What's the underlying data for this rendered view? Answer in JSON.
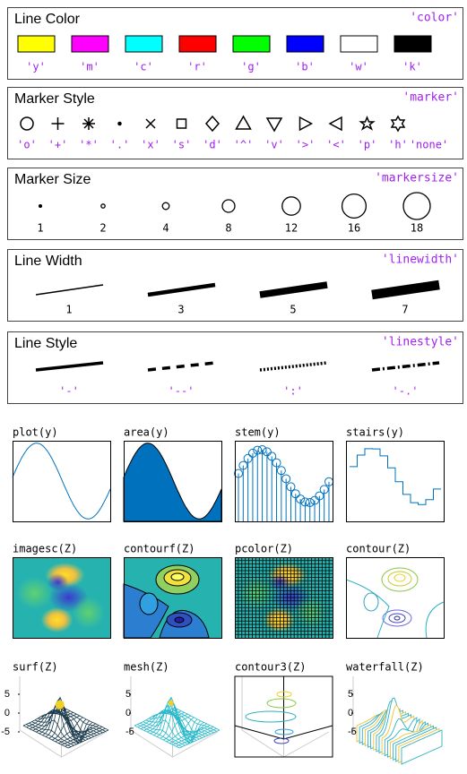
{
  "sections": [
    {
      "title": "Line Color",
      "key": "'color'",
      "items": [
        {
          "label": "'y'",
          "color": "#ffff00"
        },
        {
          "label": "'m'",
          "color": "#ff00ff"
        },
        {
          "label": "'c'",
          "color": "#00ffff"
        },
        {
          "label": "'r'",
          "color": "#ff0000"
        },
        {
          "label": "'g'",
          "color": "#00ff00"
        },
        {
          "label": "'b'",
          "color": "#0000ff"
        },
        {
          "label": "'w'",
          "color": "#ffffff"
        },
        {
          "label": "'k'",
          "color": "#000000"
        }
      ]
    },
    {
      "title": "Marker Style",
      "key": "'marker'",
      "items": [
        "'o'",
        "'+'",
        "'*'",
        "'.'",
        "'x'",
        "'s'",
        "'d'",
        "'^'",
        "'v'",
        "'>'",
        "'<'",
        "'p'",
        "'h'",
        "'none'"
      ]
    },
    {
      "title": "Marker Size",
      "key": "'markersize'",
      "items": [
        1,
        2,
        4,
        8,
        12,
        16,
        18
      ]
    },
    {
      "title": "Line Width",
      "key": "'linewidth'",
      "items": [
        1,
        3,
        5,
        7
      ]
    },
    {
      "title": "Line Style",
      "key": "'linestyle'",
      "items": [
        "'-'",
        "'--'",
        "':'",
        "'-.'"
      ]
    }
  ],
  "plots": [
    {
      "label": "plot(y)"
    },
    {
      "label": "area(y)"
    },
    {
      "label": "stem(y)"
    },
    {
      "label": "stairs(y)"
    },
    {
      "label": "imagesc(Z)"
    },
    {
      "label": "contourf(Z)"
    },
    {
      "label": "pcolor(Z)"
    },
    {
      "label": "contour(Z)"
    },
    {
      "label": "surf(Z)",
      "zticks": [
        5,
        0,
        -5
      ]
    },
    {
      "label": "mesh(Z)",
      "zticks": [
        5,
        0,
        -5
      ]
    },
    {
      "label": "contour3(Z)"
    },
    {
      "label": "waterfall(Z)",
      "zticks": [
        5,
        0,
        -5
      ]
    }
  ]
}
